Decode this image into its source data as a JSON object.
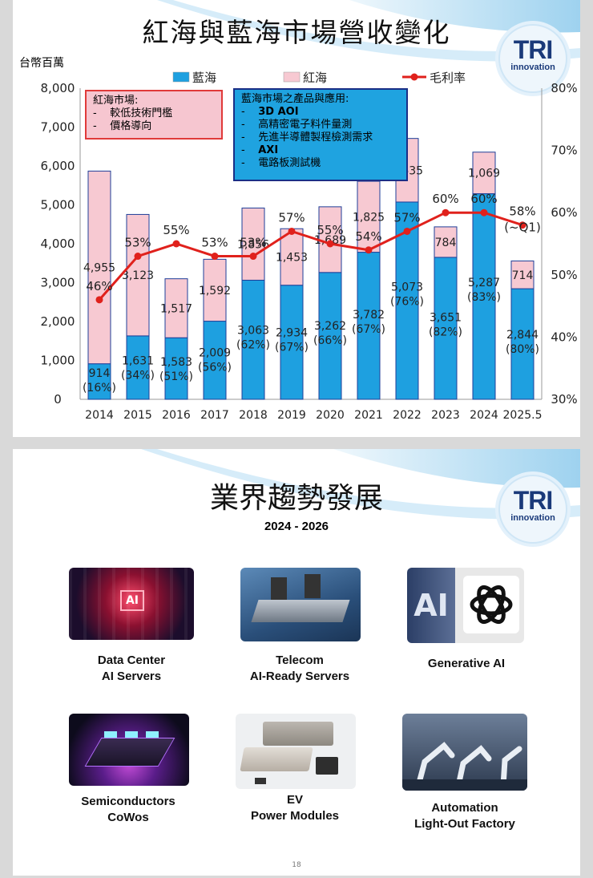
{
  "slide1": {
    "title": "紅海與藍海市場營收變化",
    "unit_label": "台幣百萬",
    "logo": {
      "big": "TRI",
      "small": "innovation"
    },
    "red_note": {
      "title": "紅海市場:",
      "items": [
        "較低技術門檻",
        "價格導向"
      ]
    },
    "blue_note": {
      "title": "藍海市場之產品與應用:",
      "items": [
        "3D AOI",
        "高精密電子料件量測",
        "先進半導體製程檢測需求",
        "AXI",
        "電路板測試機"
      ],
      "bold_items": [
        true,
        false,
        false,
        true,
        false
      ]
    }
  },
  "chart_data": {
    "type": "bar",
    "stacked": true,
    "categories": [
      "2014",
      "2015",
      "2016",
      "2017",
      "2018",
      "2019",
      "2020",
      "2021",
      "2022",
      "2023",
      "2024",
      "2025.5"
    ],
    "series": [
      {
        "name": "藍海",
        "color": "#1ea0e0",
        "values": [
          914,
          1631,
          1583,
          2009,
          3063,
          2934,
          3262,
          3782,
          5073,
          3651,
          5287,
          2844
        ],
        "labels": [
          "914",
          "1,631",
          "1,583",
          "2,009",
          "3,063",
          "2,934",
          "3,262",
          "3,782",
          "5,073",
          "3,651",
          "5,287",
          "2,844"
        ],
        "share": [
          "(16%)",
          "(34%)",
          "(51%)",
          "(56%)",
          "(62%)",
          "(67%)",
          "(66%)",
          "(67%)",
          "(76%)",
          "(82%)",
          "(83%)",
          "(80%)"
        ]
      },
      {
        "name": "紅海",
        "color": "#f7c9d2",
        "values": [
          4955,
          3123,
          1517,
          1592,
          1856,
          1453,
          1689,
          1825,
          1635,
          784,
          1069,
          714
        ],
        "labels": [
          "4,955",
          "3,123",
          "1,517",
          "1,592",
          "1,856",
          "1,453",
          "1,689",
          "1,825",
          "1,635",
          "784",
          "1,069",
          "714"
        ]
      },
      {
        "name": "毛利率",
        "type": "line",
        "axis": "right",
        "color": "#e0211c",
        "values": [
          46,
          53,
          55,
          53,
          53,
          57,
          55,
          54,
          57,
          60,
          60,
          58
        ],
        "labels": [
          "46%",
          "53%",
          "55%",
          "53%",
          "53%",
          "57%",
          "55%",
          "54%",
          "57%",
          "60%",
          "60%",
          "58%"
        ],
        "extra_label_last": "(~Q1)"
      }
    ],
    "y_left": {
      "min": 0,
      "max": 8000,
      "ticks": [
        "0",
        "1,000",
        "2,000",
        "3,000",
        "4,000",
        "5,000",
        "6,000",
        "7,000",
        "8,000"
      ]
    },
    "y_right": {
      "min": 30,
      "max": 80,
      "ticks": [
        "30%",
        "40%",
        "50%",
        "60%",
        "70%",
        "80%"
      ]
    },
    "legend_position": "top"
  },
  "slide2": {
    "title": "業界趨勢發展",
    "subtitle": "2024 - 2026",
    "logo": {
      "big": "TRI",
      "small": "innovation"
    },
    "cards": [
      {
        "line1": "Data Center",
        "line2": "AI Servers",
        "image_text": "AI"
      },
      {
        "line1": "Telecom",
        "line2": "AI-Ready Servers"
      },
      {
        "line1": "Generative AI",
        "line2": "",
        "image_text": "AI"
      },
      {
        "line1": "Semiconductors",
        "line2": "CoWos"
      },
      {
        "line1": "EV",
        "line2": "Power Modules"
      },
      {
        "line1": "Automation",
        "line2": "Light-Out Factory"
      }
    ],
    "page_number": "18"
  }
}
